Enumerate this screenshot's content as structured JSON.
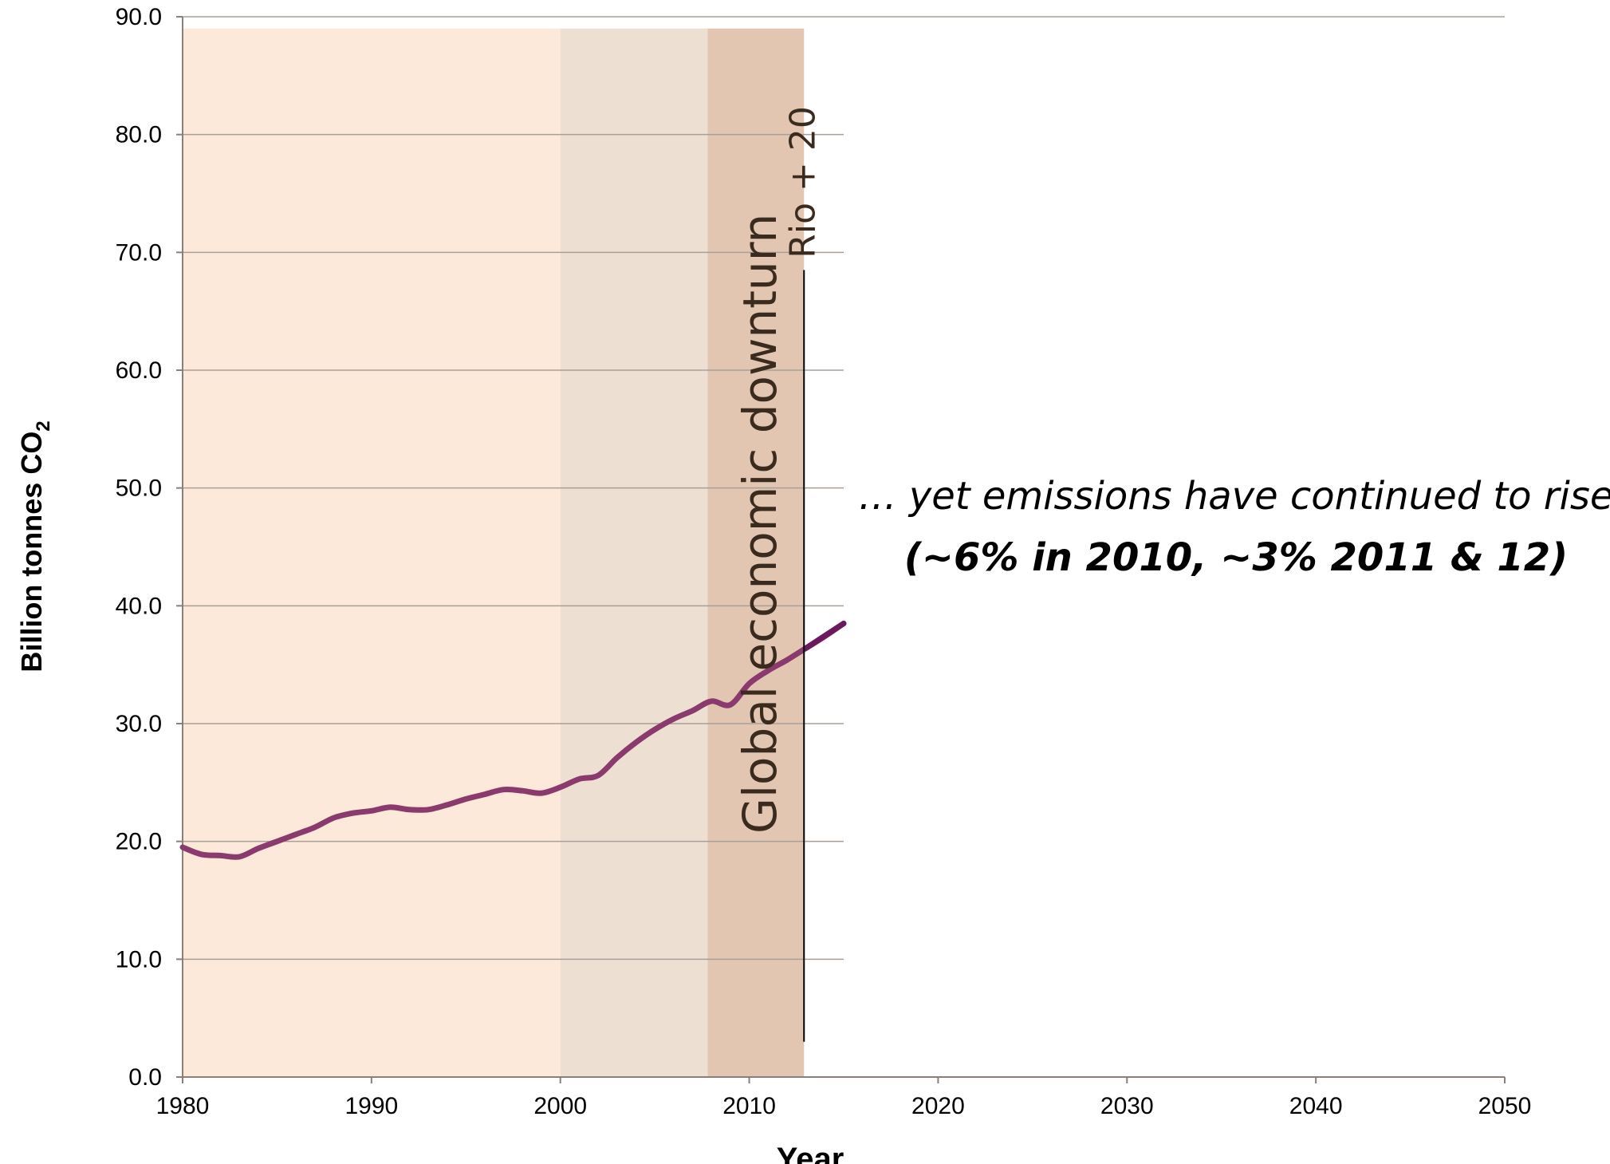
{
  "chart_data": {
    "type": "line",
    "title": "",
    "xlabel": "Year",
    "ylabel": "Billion tonnes CO",
    "ylabel_subscript": "2",
    "xlim": [
      1980,
      2050
    ],
    "ylim": [
      0,
      90
    ],
    "x_ticks": [
      "1980",
      "1990",
      "2000",
      "2010",
      "2020",
      "2030",
      "2040",
      "2050"
    ],
    "y_ticks": [
      "0.0",
      "10.0",
      "20.0",
      "30.0",
      "40.0",
      "50.0",
      "60.0",
      "70.0",
      "80.0",
      "90.0"
    ],
    "grid": "horizontal gridlines to 2015",
    "series": [
      {
        "color": "#8b3a6e",
        "x": [
          1980,
          1981,
          1982,
          1983,
          1984,
          1985,
          1986,
          1987,
          1988,
          1989,
          1990,
          1991,
          1992,
          1993,
          1994,
          1995,
          1996,
          1997,
          1998,
          1999,
          2000,
          2001,
          2002,
          2003,
          2004,
          2005,
          2006,
          2007,
          2008,
          2009,
          2010,
          2011,
          2012,
          2013,
          2014,
          2015
        ],
        "values": [
          19.5,
          18.9,
          18.8,
          18.7,
          19.4,
          20.0,
          20.6,
          21.2,
          22.0,
          22.4,
          22.6,
          22.9,
          22.7,
          22.7,
          23.1,
          23.6,
          24.0,
          24.4,
          24.3,
          24.1,
          24.6,
          25.3,
          25.6,
          27.1,
          28.4,
          29.5,
          30.4,
          31.1,
          31.9,
          31.6,
          33.4,
          34.5,
          35.4,
          36.4,
          37.4,
          38.5
        ]
      }
    ],
    "bands": [
      {
        "from": 1980,
        "to": 2000,
        "color": "#fde9d9"
      },
      {
        "from": 2000,
        "to": 2007.8,
        "color": "#eedfd3"
      },
      {
        "from": 2007.8,
        "to": 2012.9,
        "color": "#e2c6b2"
      }
    ],
    "markers": [
      {
        "x": 2012.9,
        "label": "Rio + 20"
      }
    ],
    "annotations": {
      "downturn": "Global economic downturn",
      "line1": "… yet emissions have continued to rise",
      "line2": "(~6% in 2010, ~3% 2011 & 12)"
    }
  }
}
